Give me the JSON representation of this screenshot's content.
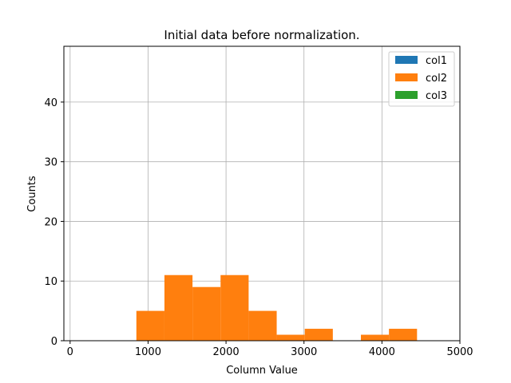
{
  "chart_data": {
    "type": "bar",
    "title": "Initial data before normalization.",
    "xlabel": "Column Value",
    "ylabel": "Counts",
    "xlim": [
      -80,
      5000
    ],
    "ylim": [
      0,
      49.35
    ],
    "xticks": [
      0,
      1000,
      2000,
      3000,
      4000,
      5000
    ],
    "yticks": [
      0,
      10,
      20,
      30,
      40
    ],
    "grid": true,
    "legend_position": "top-right",
    "series": [
      {
        "name": "col1",
        "color": "#1f77b4",
        "bins": []
      },
      {
        "name": "col2",
        "color": "#ff7f0e",
        "bins": [
          {
            "x0": 850,
            "x1": 1210,
            "count": 5
          },
          {
            "x0": 1210,
            "x1": 1570,
            "count": 11
          },
          {
            "x0": 1570,
            "x1": 1930,
            "count": 9
          },
          {
            "x0": 1930,
            "x1": 2290,
            "count": 11
          },
          {
            "x0": 2290,
            "x1": 2650,
            "count": 5
          },
          {
            "x0": 2650,
            "x1": 3010,
            "count": 1
          },
          {
            "x0": 3010,
            "x1": 3370,
            "count": 2
          },
          {
            "x0": 3370,
            "x1": 3730,
            "count": 0
          },
          {
            "x0": 3730,
            "x1": 4090,
            "count": 1
          },
          {
            "x0": 4090,
            "x1": 4450,
            "count": 2
          }
        ]
      },
      {
        "name": "col3",
        "color": "#2ca02c",
        "bins": []
      }
    ]
  }
}
